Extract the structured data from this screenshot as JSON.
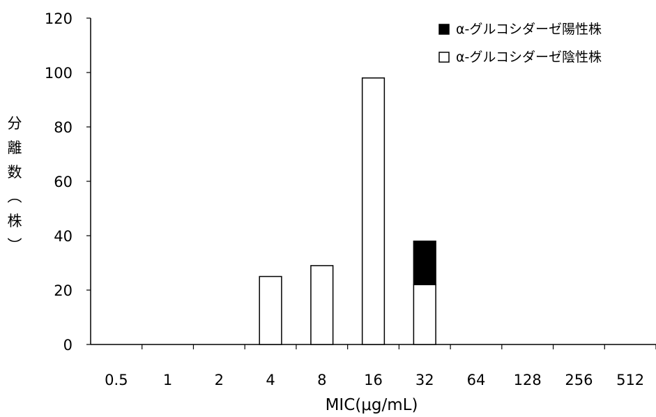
{
  "chart_data": {
    "type": "bar",
    "stacked": true,
    "categories": [
      "0.5",
      "1",
      "2",
      "4",
      "8",
      "16",
      "32",
      "64",
      "128",
      "256",
      "512"
    ],
    "series": [
      {
        "name": "α-グルコシダーゼ陰性株",
        "values": [
          0,
          0,
          0,
          25,
          29,
          98,
          22,
          0,
          0,
          0,
          0
        ],
        "color": "#ffffff"
      },
      {
        "name": "α-グルコシダーゼ陽性株",
        "values": [
          0,
          0,
          0,
          0,
          0,
          0,
          16,
          0,
          0,
          0,
          0
        ],
        "color": "#000000"
      }
    ],
    "title": "",
    "xlabel": "MIC(μg/mL)",
    "ylabel": [
      "分",
      "離",
      "数",
      "︵",
      "株",
      "︶"
    ],
    "ylim": [
      0,
      120
    ],
    "yticks": [
      "0",
      "20",
      "40",
      "60",
      "80",
      "100",
      "120"
    ],
    "grid": false,
    "legend_position": "top-right"
  }
}
